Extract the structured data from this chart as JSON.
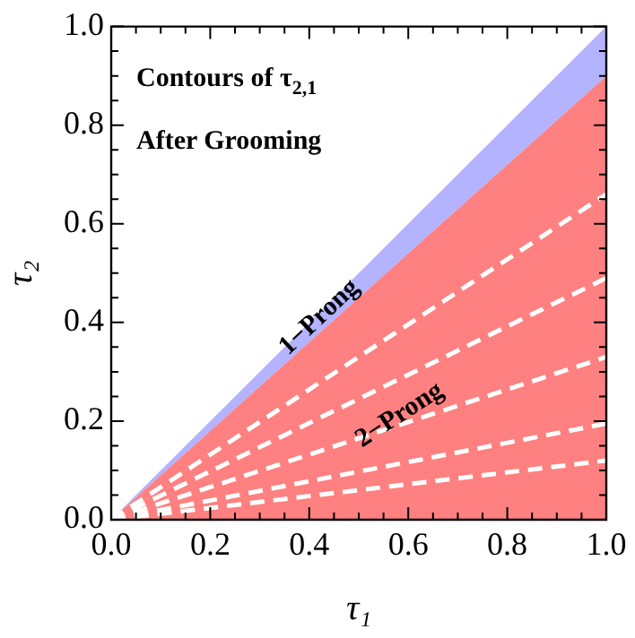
{
  "chart_data": {
    "type": "area",
    "xlabel": "τ₁",
    "ylabel": "τ₂",
    "x": [
      0,
      1
    ],
    "series": [
      {
        "type": "area",
        "color": "#ff8080",
        "values": [
          0,
          0.9
        ]
      },
      {
        "type": "area",
        "color": "#b3b3ff",
        "values": [
          0,
          1
        ]
      },
      {
        "type": "line",
        "color": "#ffffff",
        "line_style": "dashed",
        "values": [
          0,
          0.66
        ]
      },
      {
        "type": "line",
        "color": "#ffffff",
        "line_style": "dashed",
        "values": [
          0,
          0.49
        ]
      },
      {
        "type": "line",
        "color": "#ffffff",
        "line_style": "dashed",
        "values": [
          0,
          0.33
        ]
      },
      {
        "type": "line",
        "color": "#ffffff",
        "line_style": "dashed",
        "values": [
          0,
          0.195
        ]
      },
      {
        "type": "line",
        "color": "#ffffff",
        "line_style": "dashed",
        "values": [
          0,
          0.12
        ]
      }
    ],
    "annotations": [
      "Contours of τ$_{2,1}$",
      "After Grooming",
      {
        "text": "1−Prong",
        "x": 0.43,
        "y": 0.4
      },
      {
        "text": "2−Prong",
        "x": 0.59,
        "y": 0.2
      }
    ],
    "xlim": [
      0,
      1
    ],
    "ylim": [
      0,
      1
    ],
    "xticks": [
      {
        "value": 0,
        "label": "0.0"
      },
      0.2,
      0.4,
      0.6,
      0.8,
      {
        "value": 1,
        "label": "1.0"
      }
    ],
    "yticks": [
      {
        "value": 0,
        "label": "0.0"
      },
      0.2,
      0.4,
      0.6,
      0.8,
      {
        "value": 1,
        "label": "1.0"
      }
    ],
    "grid": false,
    "legend": false,
    "marker": "none"
  }
}
